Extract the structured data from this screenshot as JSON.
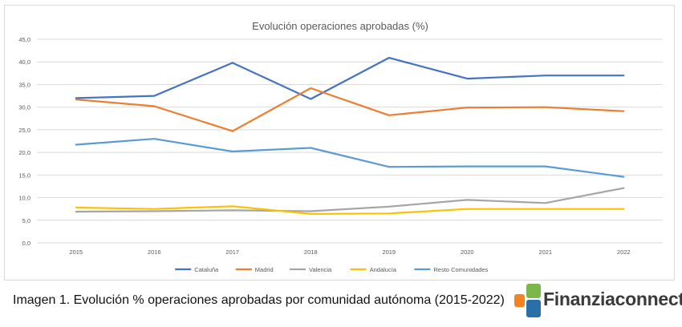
{
  "chart_data": {
    "type": "line",
    "title": "Evolución operaciones aprobadas (%)",
    "x": [
      "2015",
      "2016",
      "2017",
      "2018",
      "2019",
      "2020",
      "2021",
      "2022"
    ],
    "ylim": [
      0,
      45
    ],
    "yticks": [
      "0,0",
      "5,0",
      "10,0",
      "15,0",
      "20,0",
      "25,0",
      "30,0",
      "35,0",
      "40,0",
      "45,0"
    ],
    "grid": true,
    "legend_position": "bottom",
    "series": [
      {
        "name": "Cataluña",
        "color": "#4472c4",
        "values": [
          32.0,
          32.5,
          39.8,
          31.8,
          40.9,
          36.3,
          37.0,
          37.0
        ]
      },
      {
        "name": "Madrid",
        "color": "#ed7d31",
        "values": [
          31.7,
          30.2,
          24.7,
          34.2,
          28.2,
          29.9,
          30.0,
          29.1
        ]
      },
      {
        "name": "Valencia",
        "color": "#a5a5a5",
        "values": [
          6.9,
          7.0,
          7.2,
          7.0,
          8.0,
          9.5,
          8.8,
          12.1
        ]
      },
      {
        "name": "Andalucía",
        "color": "#ffc000",
        "values": [
          7.8,
          7.5,
          8.1,
          6.4,
          6.5,
          7.5,
          7.5,
          7.5
        ]
      },
      {
        "name": "Resto Comunidades",
        "color": "#5b9bd5",
        "values": [
          21.7,
          23.0,
          20.2,
          21.0,
          16.8,
          16.9,
          16.9,
          14.6
        ]
      }
    ]
  },
  "caption": "Imagen 1. Evolución % operaciones aprobadas por comunidad autónoma (2015-2022)",
  "logo": {
    "text": "Finanziaconnect",
    "colors": [
      "#7ab648",
      "#2a6fa8",
      "#f58220"
    ]
  }
}
